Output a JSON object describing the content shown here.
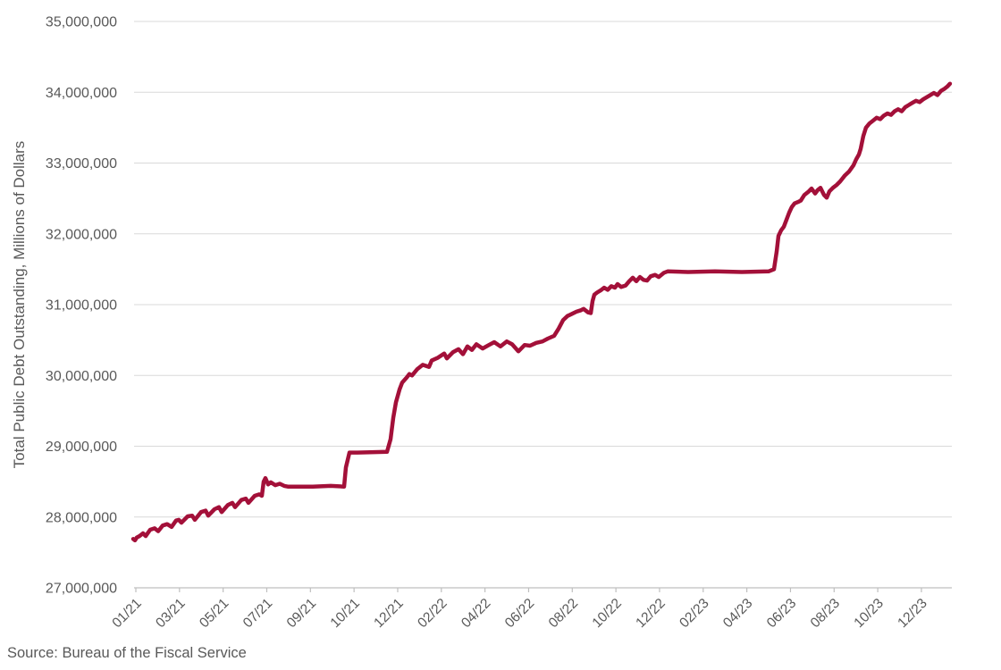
{
  "chart_data": {
    "type": "line",
    "title": "",
    "xlabel": "",
    "ylabel": "Total Public Debt Outstanding, Millions of Dollars",
    "source_note": "Source: Bureau of the Fiscal Service",
    "legend_position": "none",
    "grid": "horizontal",
    "background": "#FFFFFF",
    "y_axis": {
      "min": 27000000,
      "max": 35000000,
      "step": 1000000,
      "tick_labels": [
        "27,000,000",
        "28,000,000",
        "29,000,000",
        "30,000,000",
        "31,000,000",
        "32,000,000",
        "33,000,000",
        "34,000,000",
        "35,000,000"
      ]
    },
    "x_axis": {
      "tick_labels": [
        "01/21",
        "03/21",
        "05/21",
        "07/21",
        "09/21",
        "10/21",
        "12/21",
        "02/22",
        "04/22",
        "06/22",
        "08/22",
        "10/22",
        "12/22",
        "02/23",
        "04/23",
        "06/23",
        "08/23",
        "10/23",
        "12/23"
      ]
    },
    "series": [
      {
        "name": "Total Public Debt Outstanding",
        "color": "#A31039",
        "x_unit": "x-axis tick index (0 = 01/21 tick, 1 tick = one label interval)",
        "y_unit": "millions of dollars",
        "points": [
          [
            -0.061,
            27690000
          ],
          [
            -0.02,
            27670000
          ],
          [
            0.02,
            27710000
          ],
          [
            0.082,
            27730000
          ],
          [
            0.164,
            27770000
          ],
          [
            0.225,
            27730000
          ],
          [
            0.328,
            27820000
          ],
          [
            0.43,
            27840000
          ],
          [
            0.512,
            27800000
          ],
          [
            0.614,
            27880000
          ],
          [
            0.717,
            27900000
          ],
          [
            0.819,
            27860000
          ],
          [
            0.922,
            27950000
          ],
          [
            0.983,
            27960000
          ],
          [
            1.044,
            27920000
          ],
          [
            1.188,
            28010000
          ],
          [
            1.29,
            28020000
          ],
          [
            1.352,
            27960000
          ],
          [
            1.495,
            28070000
          ],
          [
            1.597,
            28090000
          ],
          [
            1.659,
            28020000
          ],
          [
            1.802,
            28110000
          ],
          [
            1.905,
            28140000
          ],
          [
            1.966,
            28070000
          ],
          [
            2.109,
            28170000
          ],
          [
            2.211,
            28200000
          ],
          [
            2.273,
            28140000
          ],
          [
            2.416,
            28240000
          ],
          [
            2.519,
            28260000
          ],
          [
            2.58,
            28200000
          ],
          [
            2.724,
            28300000
          ],
          [
            2.826,
            28320000
          ],
          [
            2.887,
            28300000
          ],
          [
            2.928,
            28500000
          ],
          [
            2.969,
            28550000
          ],
          [
            3.031,
            28460000
          ],
          [
            3.092,
            28490000
          ],
          [
            3.195,
            28450000
          ],
          [
            3.297,
            28470000
          ],
          [
            3.4,
            28440000
          ],
          [
            3.482,
            28430000
          ],
          [
            4.055,
            28430000
          ],
          [
            4.465,
            28440000
          ],
          [
            4.772,
            28430000
          ],
          [
            4.813,
            28700000
          ],
          [
            4.895,
            28910000
          ],
          [
            5.079,
            28910000
          ],
          [
            5.755,
            28920000
          ],
          [
            5.837,
            29100000
          ],
          [
            5.898,
            29400000
          ],
          [
            5.96,
            29620000
          ],
          [
            6.042,
            29800000
          ],
          [
            6.103,
            29900000
          ],
          [
            6.206,
            29970000
          ],
          [
            6.267,
            30020000
          ],
          [
            6.328,
            30000000
          ],
          [
            6.451,
            30090000
          ],
          [
            6.574,
            30150000
          ],
          [
            6.717,
            30120000
          ],
          [
            6.779,
            30210000
          ],
          [
            6.922,
            30250000
          ],
          [
            7.065,
            30310000
          ],
          [
            7.127,
            30240000
          ],
          [
            7.27,
            30330000
          ],
          [
            7.393,
            30370000
          ],
          [
            7.495,
            30300000
          ],
          [
            7.598,
            30410000
          ],
          [
            7.7,
            30360000
          ],
          [
            7.802,
            30440000
          ],
          [
            7.946,
            30380000
          ],
          [
            8.089,
            30430000
          ],
          [
            8.212,
            30470000
          ],
          [
            8.355,
            30410000
          ],
          [
            8.499,
            30480000
          ],
          [
            8.622,
            30440000
          ],
          [
            8.765,
            30340000
          ],
          [
            8.908,
            30430000
          ],
          [
            9.031,
            30420000
          ],
          [
            9.175,
            30460000
          ],
          [
            9.318,
            30480000
          ],
          [
            9.441,
            30520000
          ],
          [
            9.584,
            30560000
          ],
          [
            9.687,
            30660000
          ],
          [
            9.789,
            30780000
          ],
          [
            9.892,
            30840000
          ],
          [
            9.994,
            30870000
          ],
          [
            10.096,
            30900000
          ],
          [
            10.199,
            30920000
          ],
          [
            10.26,
            30940000
          ],
          [
            10.362,
            30890000
          ],
          [
            10.424,
            30880000
          ],
          [
            10.465,
            31050000
          ],
          [
            10.506,
            31140000
          ],
          [
            10.567,
            31170000
          ],
          [
            10.649,
            31200000
          ],
          [
            10.731,
            31240000
          ],
          [
            10.813,
            31210000
          ],
          [
            10.895,
            31260000
          ],
          [
            10.977,
            31240000
          ],
          [
            11.038,
            31290000
          ],
          [
            11.12,
            31250000
          ],
          [
            11.223,
            31270000
          ],
          [
            11.304,
            31330000
          ],
          [
            11.386,
            31380000
          ],
          [
            11.468,
            31330000
          ],
          [
            11.55,
            31390000
          ],
          [
            11.632,
            31350000
          ],
          [
            11.714,
            31340000
          ],
          [
            11.796,
            31400000
          ],
          [
            11.898,
            31420000
          ],
          [
            11.98,
            31390000
          ],
          [
            12.103,
            31450000
          ],
          [
            12.185,
            31470000
          ],
          [
            12.656,
            31460000
          ],
          [
            13.27,
            31470000
          ],
          [
            13.885,
            31460000
          ],
          [
            14.499,
            31470000
          ],
          [
            14.622,
            31500000
          ],
          [
            14.683,
            31750000
          ],
          [
            14.724,
            31970000
          ],
          [
            14.786,
            32050000
          ],
          [
            14.847,
            32100000
          ],
          [
            14.908,
            32200000
          ],
          [
            14.97,
            32300000
          ],
          [
            15.031,
            32380000
          ],
          [
            15.093,
            32430000
          ],
          [
            15.174,
            32450000
          ],
          [
            15.236,
            32470000
          ],
          [
            15.318,
            32550000
          ],
          [
            15.42,
            32600000
          ],
          [
            15.482,
            32640000
          ],
          [
            15.564,
            32570000
          ],
          [
            15.625,
            32620000
          ],
          [
            15.687,
            32650000
          ],
          [
            15.768,
            32550000
          ],
          [
            15.83,
            32510000
          ],
          [
            15.891,
            32600000
          ],
          [
            15.973,
            32650000
          ],
          [
            16.055,
            32690000
          ],
          [
            16.137,
            32740000
          ],
          [
            16.239,
            32820000
          ],
          [
            16.342,
            32880000
          ],
          [
            16.444,
            32970000
          ],
          [
            16.505,
            33050000
          ],
          [
            16.567,
            33120000
          ],
          [
            16.608,
            33200000
          ],
          [
            16.669,
            33380000
          ],
          [
            16.73,
            33500000
          ],
          [
            16.812,
            33560000
          ],
          [
            16.894,
            33600000
          ],
          [
            16.976,
            33640000
          ],
          [
            17.058,
            33620000
          ],
          [
            17.14,
            33670000
          ],
          [
            17.222,
            33700000
          ],
          [
            17.303,
            33680000
          ],
          [
            17.385,
            33730000
          ],
          [
            17.467,
            33760000
          ],
          [
            17.549,
            33730000
          ],
          [
            17.631,
            33790000
          ],
          [
            17.713,
            33820000
          ],
          [
            17.795,
            33850000
          ],
          [
            17.876,
            33880000
          ],
          [
            17.958,
            33860000
          ],
          [
            18.04,
            33900000
          ],
          [
            18.122,
            33930000
          ],
          [
            18.204,
            33960000
          ],
          [
            18.286,
            33990000
          ],
          [
            18.368,
            33960000
          ],
          [
            18.45,
            34020000
          ],
          [
            18.531,
            34050000
          ],
          [
            18.593,
            34080000
          ],
          [
            18.654,
            34120000
          ]
        ]
      }
    ]
  },
  "colors": {
    "line": "#A31039",
    "gridline": "#D9D9D9",
    "axis_line": "#BFBFBF",
    "tick_label": "#595959",
    "axis_title": "#595959",
    "source_text": "#595959"
  }
}
